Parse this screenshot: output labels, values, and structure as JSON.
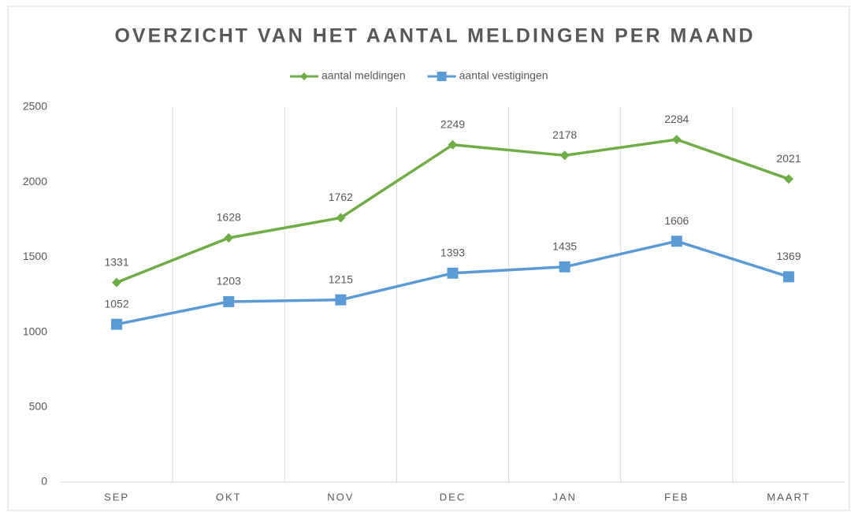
{
  "chart_data": {
    "type": "line",
    "title": "OVERZICHT VAN HET AANTAL MELDINGEN PER MAAND",
    "categories": [
      "SEP",
      "OKT",
      "NOV",
      "DEC",
      "JAN",
      "FEB",
      "MAART"
    ],
    "series": [
      {
        "name": "aantal meldingen",
        "color": "#70ad47",
        "marker": "diamond",
        "values": [
          1331,
          1628,
          1762,
          2249,
          2178,
          2284,
          2021
        ]
      },
      {
        "name": "aantal vestigingen",
        "color": "#5b9bd5",
        "marker": "square",
        "values": [
          1052,
          1203,
          1215,
          1393,
          1435,
          1606,
          1369
        ]
      }
    ],
    "ylim": [
      0,
      2500
    ],
    "yticks": [
      0,
      500,
      1000,
      1500,
      2000,
      2500
    ],
    "legend": "top"
  }
}
